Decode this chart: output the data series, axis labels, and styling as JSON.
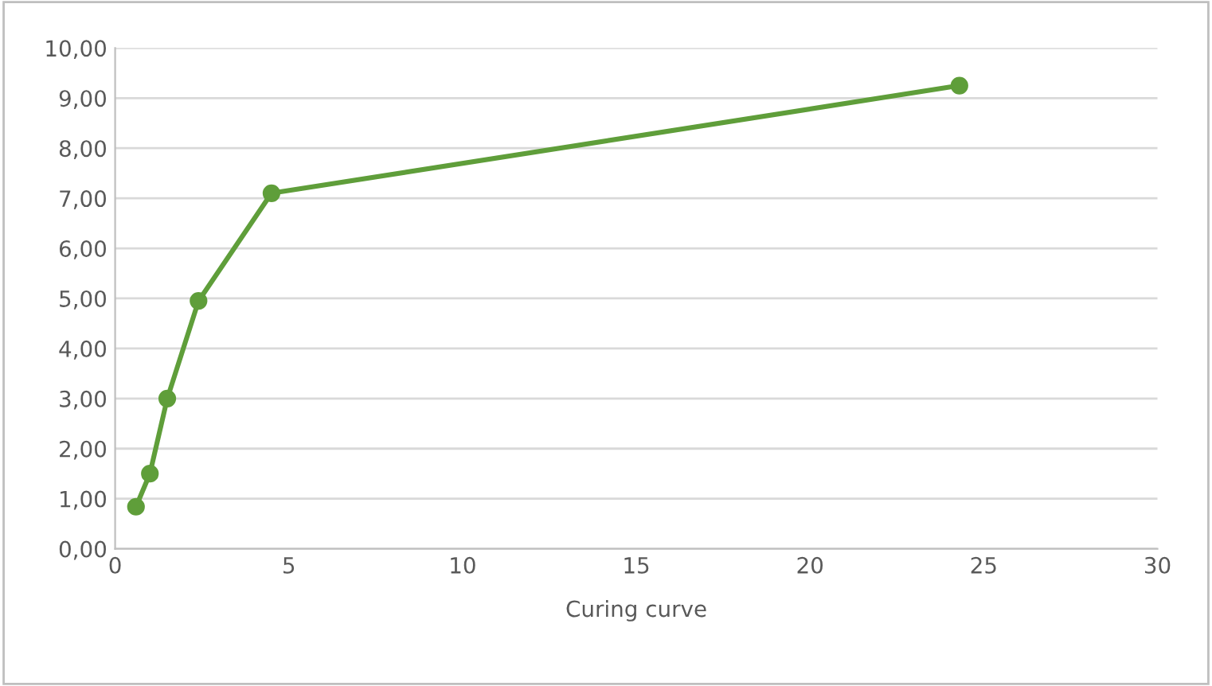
{
  "chart_data": {
    "type": "line",
    "xlabel": "Curing curve",
    "x": [
      0.6,
      1.0,
      1.5,
      2.4,
      4.5,
      24.3
    ],
    "series": [
      {
        "color": "#5f9e3a",
        "values": [
          0.84,
          1.5,
          3.0,
          4.95,
          7.1,
          9.25
        ]
      }
    ],
    "xlim": [
      0,
      30
    ],
    "xticks": [
      0,
      5,
      10,
      15,
      20,
      25,
      30
    ],
    "ylim": [
      0,
      10
    ],
    "yticks": [
      {
        "value": 0,
        "label": "0,00"
      },
      {
        "value": 1,
        "label": "1,00"
      },
      {
        "value": 2,
        "label": "2,00"
      },
      {
        "value": 3,
        "label": "3,00"
      },
      {
        "value": 4,
        "label": "4,00"
      },
      {
        "value": 5,
        "label": "5,00"
      },
      {
        "value": 6,
        "label": "6,00"
      },
      {
        "value": 7,
        "label": "7,00"
      },
      {
        "value": 8,
        "label": "8,00"
      },
      {
        "value": 9,
        "label": "9,00"
      },
      {
        "value": 10,
        "label": "10,00"
      }
    ],
    "grid": "y",
    "marker": "circle",
    "line_style": "solid",
    "legend": false
  }
}
